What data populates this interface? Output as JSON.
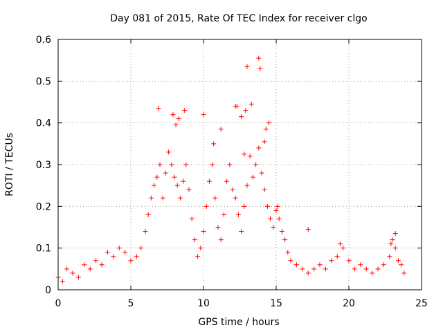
{
  "chart_data": {
    "type": "scatter",
    "title": "Day 081 of 2015, Rate Of TEC Index for receiver clgo",
    "xlabel": "GPS time / hours",
    "ylabel": "ROTI / TECUs",
    "xlim": [
      0,
      25
    ],
    "ylim": [
      0,
      0.6
    ],
    "x_ticks": [
      0,
      5,
      10,
      15,
      20,
      25
    ],
    "y_ticks": [
      0,
      0.1,
      0.2,
      0.3,
      0.4,
      0.5,
      0.6
    ],
    "x_tick_labels": [
      "0",
      "5",
      "10",
      "15",
      "20",
      "25"
    ],
    "y_tick_labels": [
      "0",
      "0.1",
      "0.2",
      "0.3",
      "0.4",
      "0.5",
      "0.6"
    ],
    "grid": true,
    "marker": "+",
    "marker_color": "#ff0000",
    "series": [
      {
        "x": [
          0.0,
          0.3,
          0.6,
          1.0,
          1.4,
          1.8,
          2.2,
          2.6,
          3.0,
          3.4,
          3.8,
          4.2,
          4.6,
          5.0,
          5.4,
          5.7,
          6.0,
          6.2,
          6.4,
          6.6,
          6.8,
          7.0,
          7.2,
          7.4,
          7.6,
          7.8,
          8.0,
          8.2,
          8.4,
          8.6,
          8.8,
          9.0,
          9.2,
          9.4,
          9.6,
          9.8,
          10.0,
          10.2,
          10.4,
          10.6,
          10.8,
          11.0,
          11.2,
          11.4,
          11.6,
          11.8,
          12.0,
          12.2,
          12.4,
          12.6,
          12.8,
          13.0,
          13.2,
          13.4,
          13.6,
          13.8,
          14.0,
          14.2,
          14.4,
          14.6,
          14.8,
          15.0,
          15.2,
          15.4,
          15.6,
          15.8,
          16.0,
          16.4,
          16.8,
          17.2,
          17.6,
          18.0,
          18.4,
          18.8,
          19.2,
          19.6,
          20.0,
          20.4,
          20.8,
          21.2,
          21.6,
          22.0,
          22.4,
          22.8,
          23.0,
          23.2,
          23.4,
          23.6,
          23.8,
          6.9,
          7.9,
          8.1,
          8.3,
          8.7,
          10.0,
          10.7,
          11.2,
          12.2,
          12.3,
          12.6,
          12.8,
          12.9,
          13.0,
          13.3,
          13.8,
          13.9,
          14.2,
          14.3,
          14.5,
          15.1,
          17.2,
          19.4,
          22.9,
          23.2
        ],
        "y": [
          0.03,
          0.02,
          0.05,
          0.04,
          0.03,
          0.06,
          0.05,
          0.07,
          0.06,
          0.09,
          0.08,
          0.1,
          0.09,
          0.07,
          0.08,
          0.1,
          0.14,
          0.18,
          0.22,
          0.25,
          0.27,
          0.3,
          0.22,
          0.28,
          0.33,
          0.3,
          0.27,
          0.25,
          0.22,
          0.26,
          0.3,
          0.24,
          0.17,
          0.12,
          0.08,
          0.1,
          0.14,
          0.2,
          0.26,
          0.3,
          0.22,
          0.15,
          0.12,
          0.18,
          0.26,
          0.3,
          0.24,
          0.22,
          0.18,
          0.14,
          0.2,
          0.25,
          0.32,
          0.27,
          0.3,
          0.34,
          0.28,
          0.24,
          0.2,
          0.17,
          0.15,
          0.19,
          0.17,
          0.14,
          0.12,
          0.09,
          0.07,
          0.06,
          0.05,
          0.04,
          0.05,
          0.06,
          0.05,
          0.07,
          0.08,
          0.1,
          0.07,
          0.05,
          0.06,
          0.05,
          0.04,
          0.05,
          0.06,
          0.08,
          0.12,
          0.1,
          0.07,
          0.06,
          0.04,
          0.435,
          0.42,
          0.395,
          0.41,
          0.43,
          0.42,
          0.35,
          0.385,
          0.44,
          0.44,
          0.415,
          0.325,
          0.43,
          0.535,
          0.445,
          0.555,
          0.53,
          0.355,
          0.385,
          0.4,
          0.2,
          0.145,
          0.11,
          0.11,
          0.135
        ]
      }
    ]
  }
}
